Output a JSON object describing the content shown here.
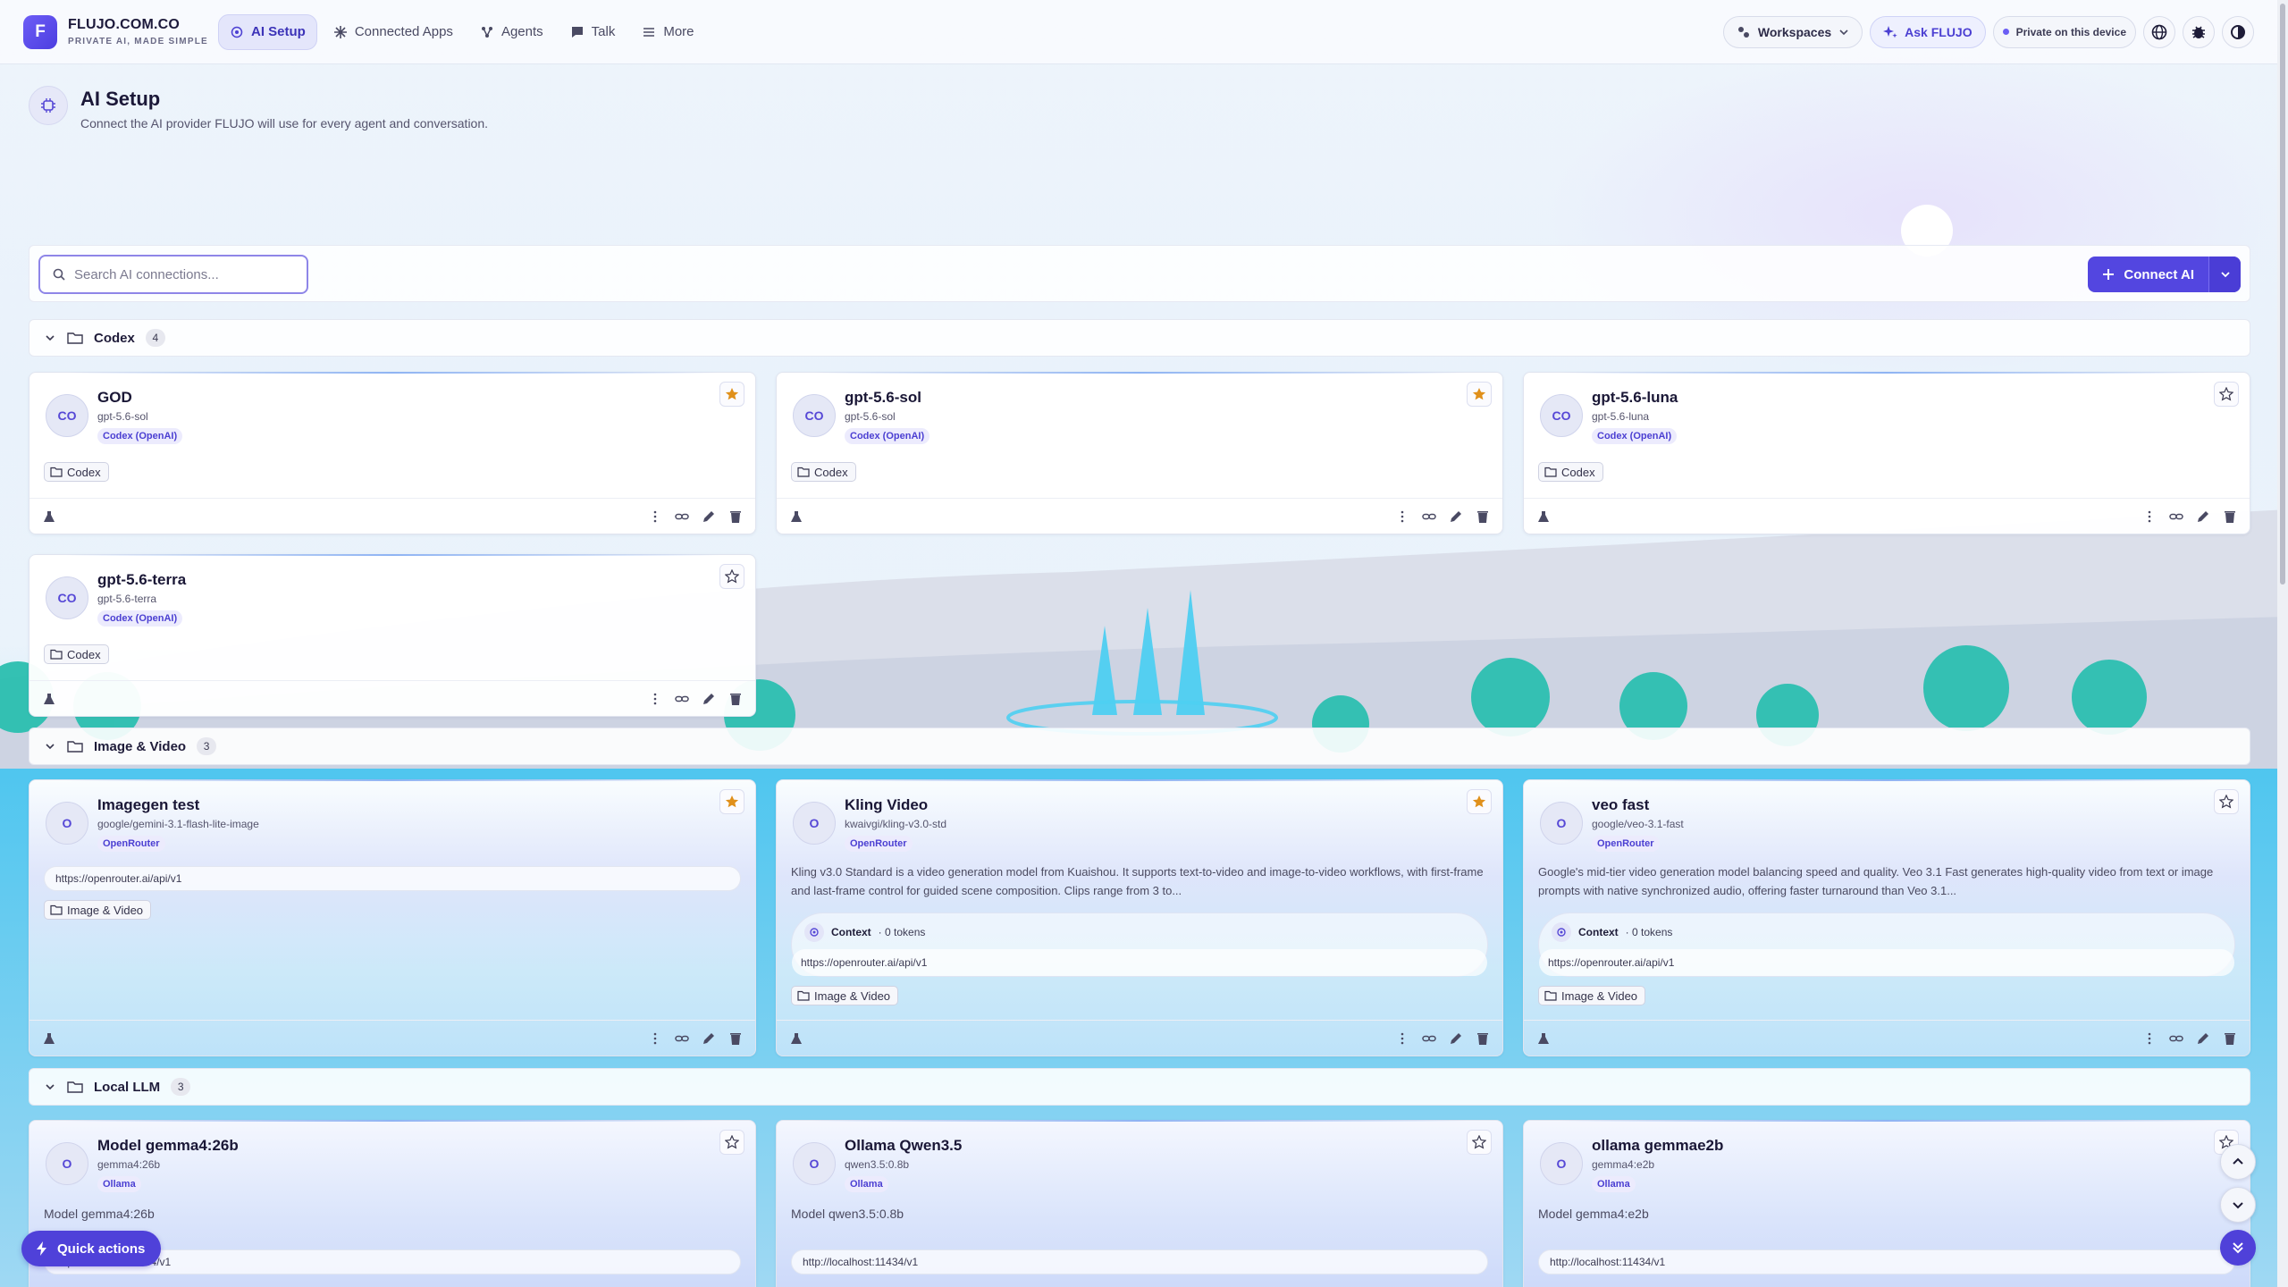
{
  "brand": {
    "logo_letter": "F",
    "name": "FLUJO.COM.CO",
    "tagline": "PRIVATE AI, MADE SIMPLE"
  },
  "nav": [
    {
      "label": "AI Setup",
      "icon": "ai-setup-icon",
      "active": true
    },
    {
      "label": "Connected Apps",
      "icon": "apps-icon",
      "active": false
    },
    {
      "label": "Agents",
      "icon": "agents-icon",
      "active": false
    },
    {
      "label": "Talk",
      "icon": "chat-icon",
      "active": false
    },
    {
      "label": "More",
      "icon": "menu-icon",
      "active": false
    }
  ],
  "topbar": {
    "workspaces_label": "Workspaces",
    "ask_label": "Ask FLUJO",
    "private_label": "Private on this device"
  },
  "page": {
    "title": "AI Setup",
    "subtitle": "Connect the AI provider FLUJO will use for every agent and conversation."
  },
  "search": {
    "placeholder": "Search AI connections..."
  },
  "connect_button": {
    "label": "Connect AI"
  },
  "groups": [
    {
      "name": "Codex",
      "count": "4",
      "cards": [
        {
          "avatar": "CO",
          "title": "GOD",
          "model": "gpt-5.6-sol",
          "provider": "Codex (OpenAI)",
          "starred": true,
          "tag": "Codex"
        },
        {
          "avatar": "CO",
          "title": "gpt-5.6-sol",
          "model": "gpt-5.6-sol",
          "provider": "Codex (OpenAI)",
          "starred": true,
          "tag": "Codex"
        },
        {
          "avatar": "CO",
          "title": "gpt-5.6-luna",
          "model": "gpt-5.6-luna",
          "provider": "Codex (OpenAI)",
          "starred": false,
          "tag": "Codex"
        },
        {
          "avatar": "CO",
          "title": "gpt-5.6-terra",
          "model": "gpt-5.6-terra",
          "provider": "Codex (OpenAI)",
          "starred": false,
          "tag": "Codex"
        }
      ]
    },
    {
      "name": "Image & Video",
      "count": "3",
      "cards": [
        {
          "avatar": "O",
          "title": "Imagegen test",
          "model": "google/gemini-3.1-flash-lite-image",
          "provider": "OpenRouter",
          "starred": true,
          "url": "https://openrouter.ai/api/v1",
          "tag": "Image & Video"
        },
        {
          "avatar": "O",
          "title": "Kling Video",
          "model": "kwaivgi/kling-v3.0-std",
          "provider": "OpenRouter",
          "starred": true,
          "description": "Kling v3.0 Standard is a video generation model from Kuaishou. It supports text-to-video and image-to-video workflows, with first-frame and last-frame control for guided scene composition. Clips range from 3 to...",
          "context_label": "Context",
          "context_value": "· 0 tokens",
          "url": "https://openrouter.ai/api/v1",
          "tag": "Image & Video"
        },
        {
          "avatar": "O",
          "title": "veo fast",
          "model": "google/veo-3.1-fast",
          "provider": "OpenRouter",
          "starred": false,
          "description": "Google's mid-tier video generation model balancing speed and quality. Veo 3.1 Fast generates high-quality video from text or image prompts with native synchronized audio, offering faster turnaround than Veo 3.1...",
          "context_label": "Context",
          "context_value": "· 0 tokens",
          "url": "https://openrouter.ai/api/v1",
          "tag": "Image & Video"
        }
      ]
    },
    {
      "name": "Local LLM",
      "count": "3",
      "cards": [
        {
          "avatar": "O",
          "title": "Model gemma4:26b",
          "model": "gemma4:26b",
          "provider": "Ollama",
          "starred": false,
          "description": "Model gemma4:26b",
          "url": "http://localhost:11434/v1"
        },
        {
          "avatar": "O",
          "title": "Ollama Qwen3.5",
          "model": "qwen3.5:0.8b",
          "provider": "Ollama",
          "starred": false,
          "description": "Model qwen3.5:0.8b",
          "url": "http://localhost:11434/v1"
        },
        {
          "avatar": "O",
          "title": "ollama gemmae2b",
          "model": "gemma4:e2b",
          "provider": "Ollama",
          "starred": false,
          "description": "Model gemma4:e2b",
          "url": "http://localhost:11434/v1"
        }
      ]
    }
  ],
  "quick_actions": {
    "label": "Quick actions"
  },
  "colors": {
    "accent": "#5346e0",
    "star": "#e0901a",
    "brand": "#6d5df6"
  }
}
